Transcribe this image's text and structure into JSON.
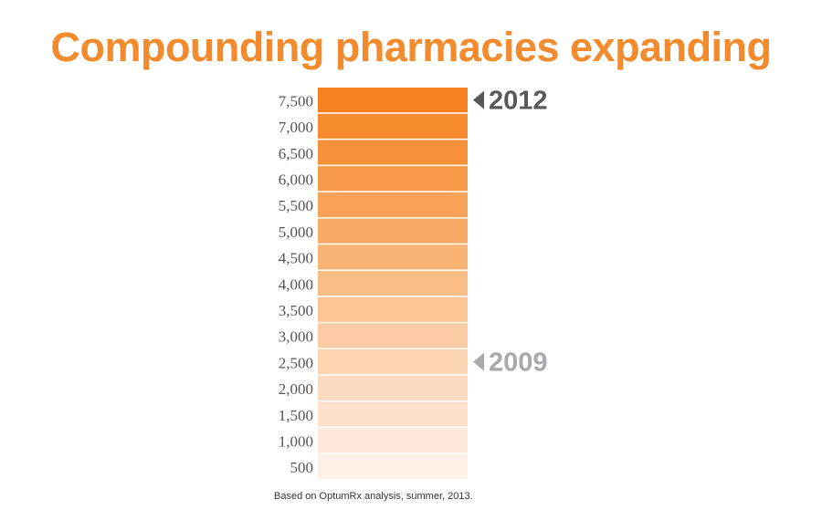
{
  "chart_data": {
    "type": "bar",
    "title": "Compounding pharmacies expanding",
    "y_ticks": [
      7500,
      7000,
      6500,
      6000,
      5500,
      5000,
      4500,
      4000,
      3500,
      3000,
      2500,
      2000,
      1500,
      1000,
      500
    ],
    "y_tick_labels": [
      "7,500",
      "7,000",
      "6,500",
      "6,000",
      "5,500",
      "5,000",
      "4,500",
      "4,000",
      "3,500",
      "3,000",
      "2,500",
      "2,000",
      "1,500",
      "1,000",
      "500"
    ],
    "markers": [
      {
        "label": "2012",
        "value": 7500,
        "color": "#58585a"
      },
      {
        "label": "2009",
        "value": 2500,
        "color": "#a7a9ac"
      }
    ],
    "segment_colors": [
      "#f5821f",
      "#f58a2e",
      "#f6913a",
      "#f79a48",
      "#f7a257",
      "#f8aa66",
      "#f9b475",
      "#fabd85",
      "#fbc595",
      "#fbcca3",
      "#fcd4b2",
      "#fcdac0",
      "#fde1cc",
      "#fee8d9",
      "#fef0e6"
    ],
    "grid": false
  },
  "source_note": "Based on OptumRx analysis, summer, 2013."
}
